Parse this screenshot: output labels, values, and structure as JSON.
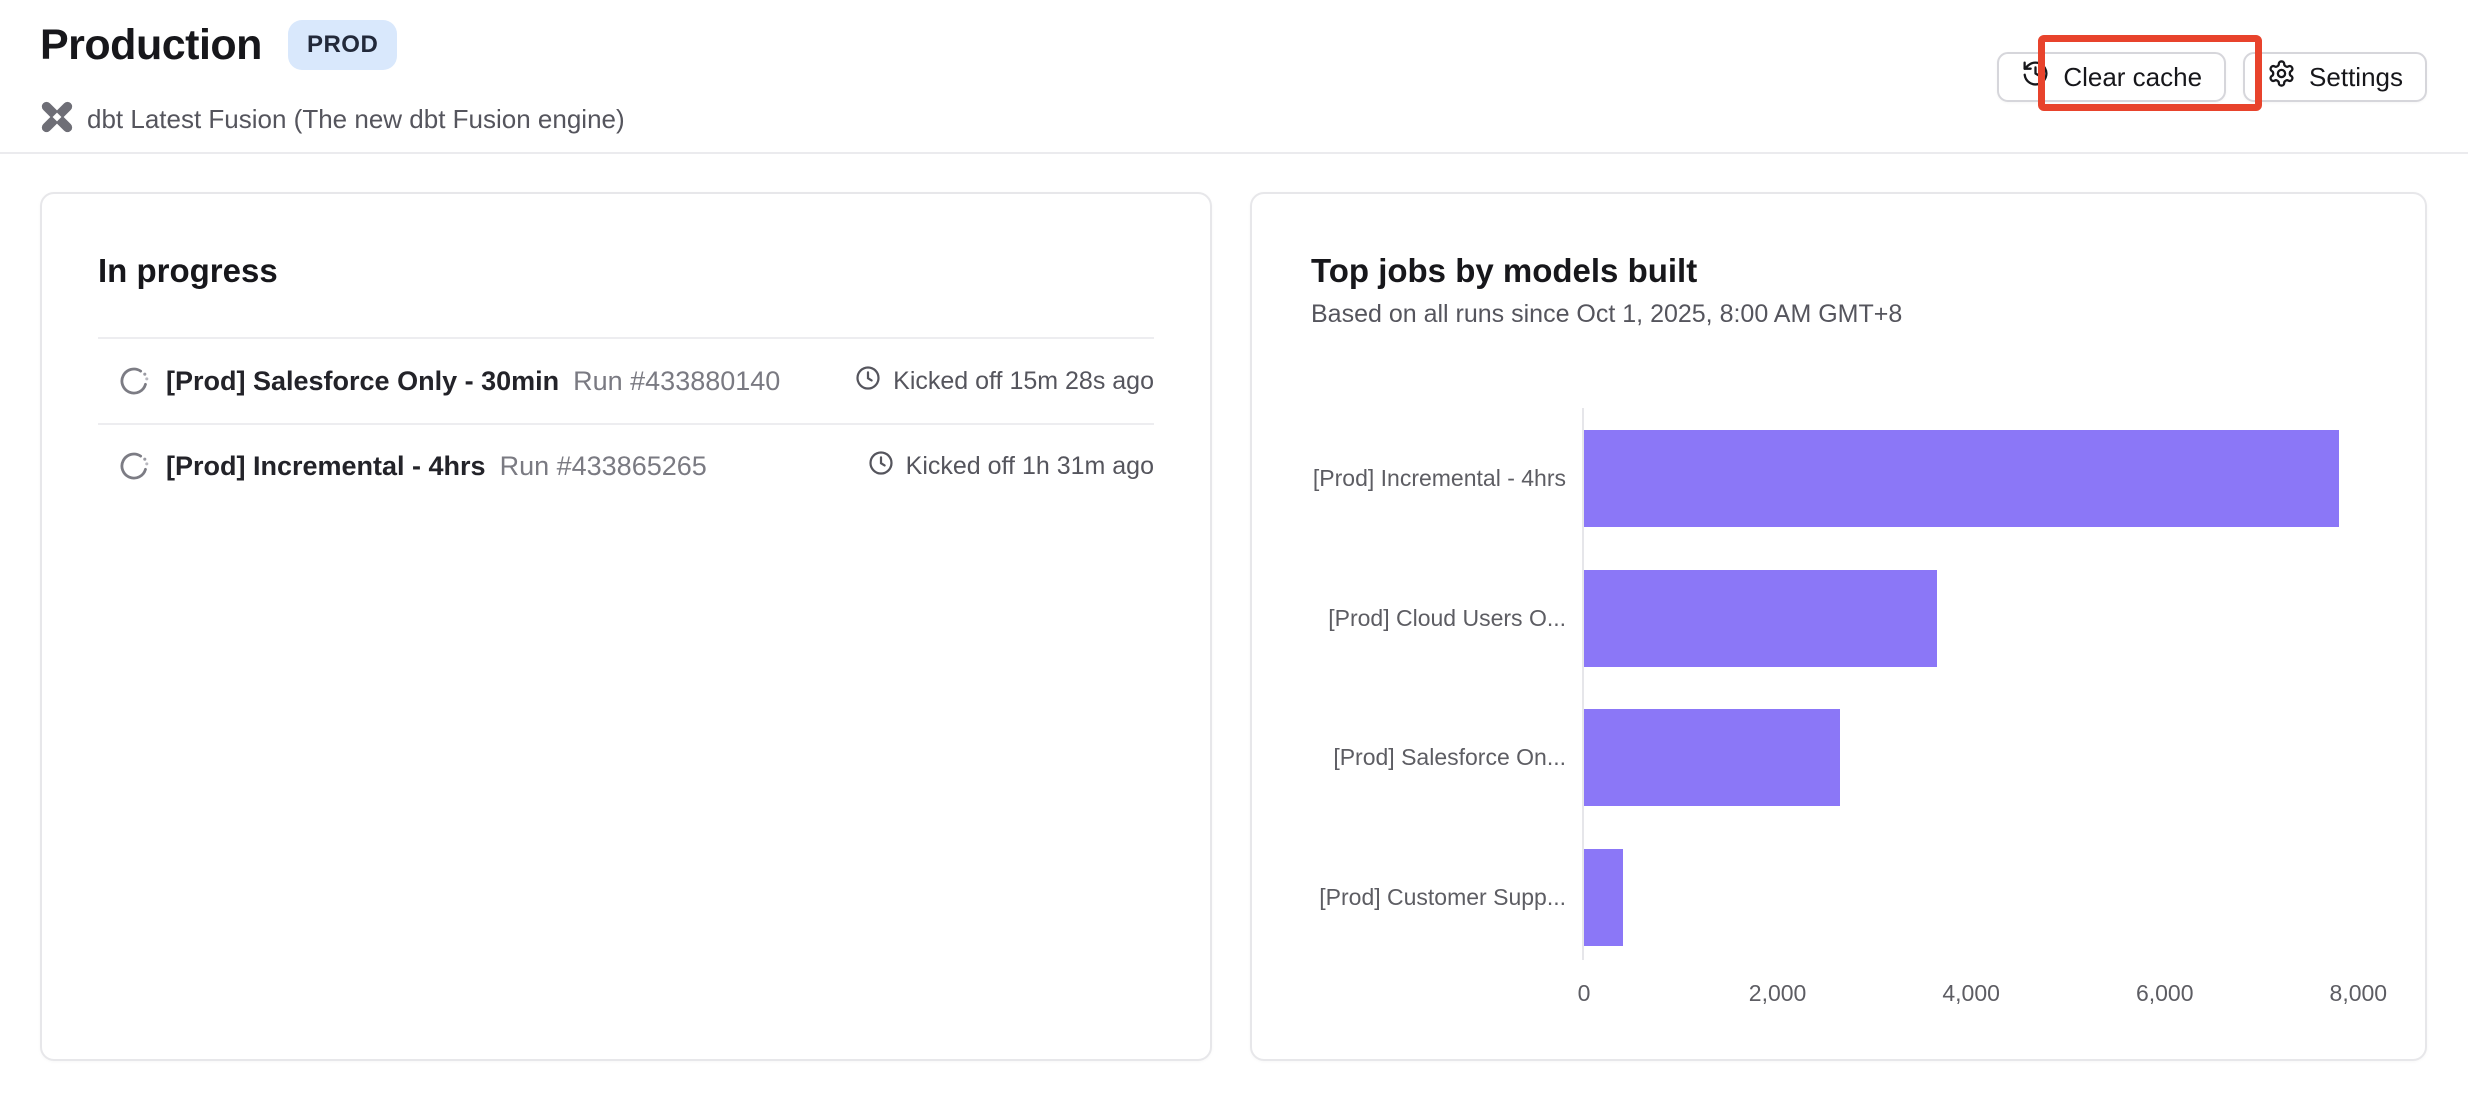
{
  "page": {
    "title": "Production",
    "env_badge": "PROD",
    "subtitle": "dbt Latest Fusion (The new dbt Fusion engine)"
  },
  "toolbar": {
    "clear_cache_label": "Clear cache",
    "settings_label": "Settings"
  },
  "in_progress": {
    "heading": "In progress",
    "runs": [
      {
        "name": "[Prod] Salesforce Only - 30min",
        "run_number": "Run #433880140",
        "kicked_off": "Kicked off 15m 28s ago"
      },
      {
        "name": "[Prod] Incremental - 4hrs",
        "run_number": "Run #433865265",
        "kicked_off": "Kicked off 1h 31m ago"
      }
    ]
  },
  "top_jobs": {
    "heading": "Top jobs by models built",
    "subheading": "Based on all runs since Oct 1, 2025, 8:00 AM GMT+8"
  },
  "chart_data": {
    "type": "bar",
    "orientation": "horizontal",
    "title": "Top jobs by models built",
    "categories": [
      "[Prod] Incremental - 4hrs",
      "[Prod] Cloud Users O...",
      "[Prod] Salesforce On...",
      "[Prod] Customer Supp..."
    ],
    "values": [
      7800,
      3650,
      2650,
      400
    ],
    "xlabel": "",
    "ylabel": "",
    "xlim": [
      0,
      8100
    ],
    "xticks": [
      0,
      2000,
      4000,
      6000,
      8000
    ],
    "xtick_labels": [
      "0",
      "2,000",
      "4,000",
      "6,000",
      "8,000"
    ],
    "bar_color": "#8b77f7",
    "grid": false,
    "legend": false
  },
  "colors": {
    "accent_purple": "#8b77f7",
    "badge_bg": "#d9e8fc",
    "annotation_red": "#e8432c"
  }
}
